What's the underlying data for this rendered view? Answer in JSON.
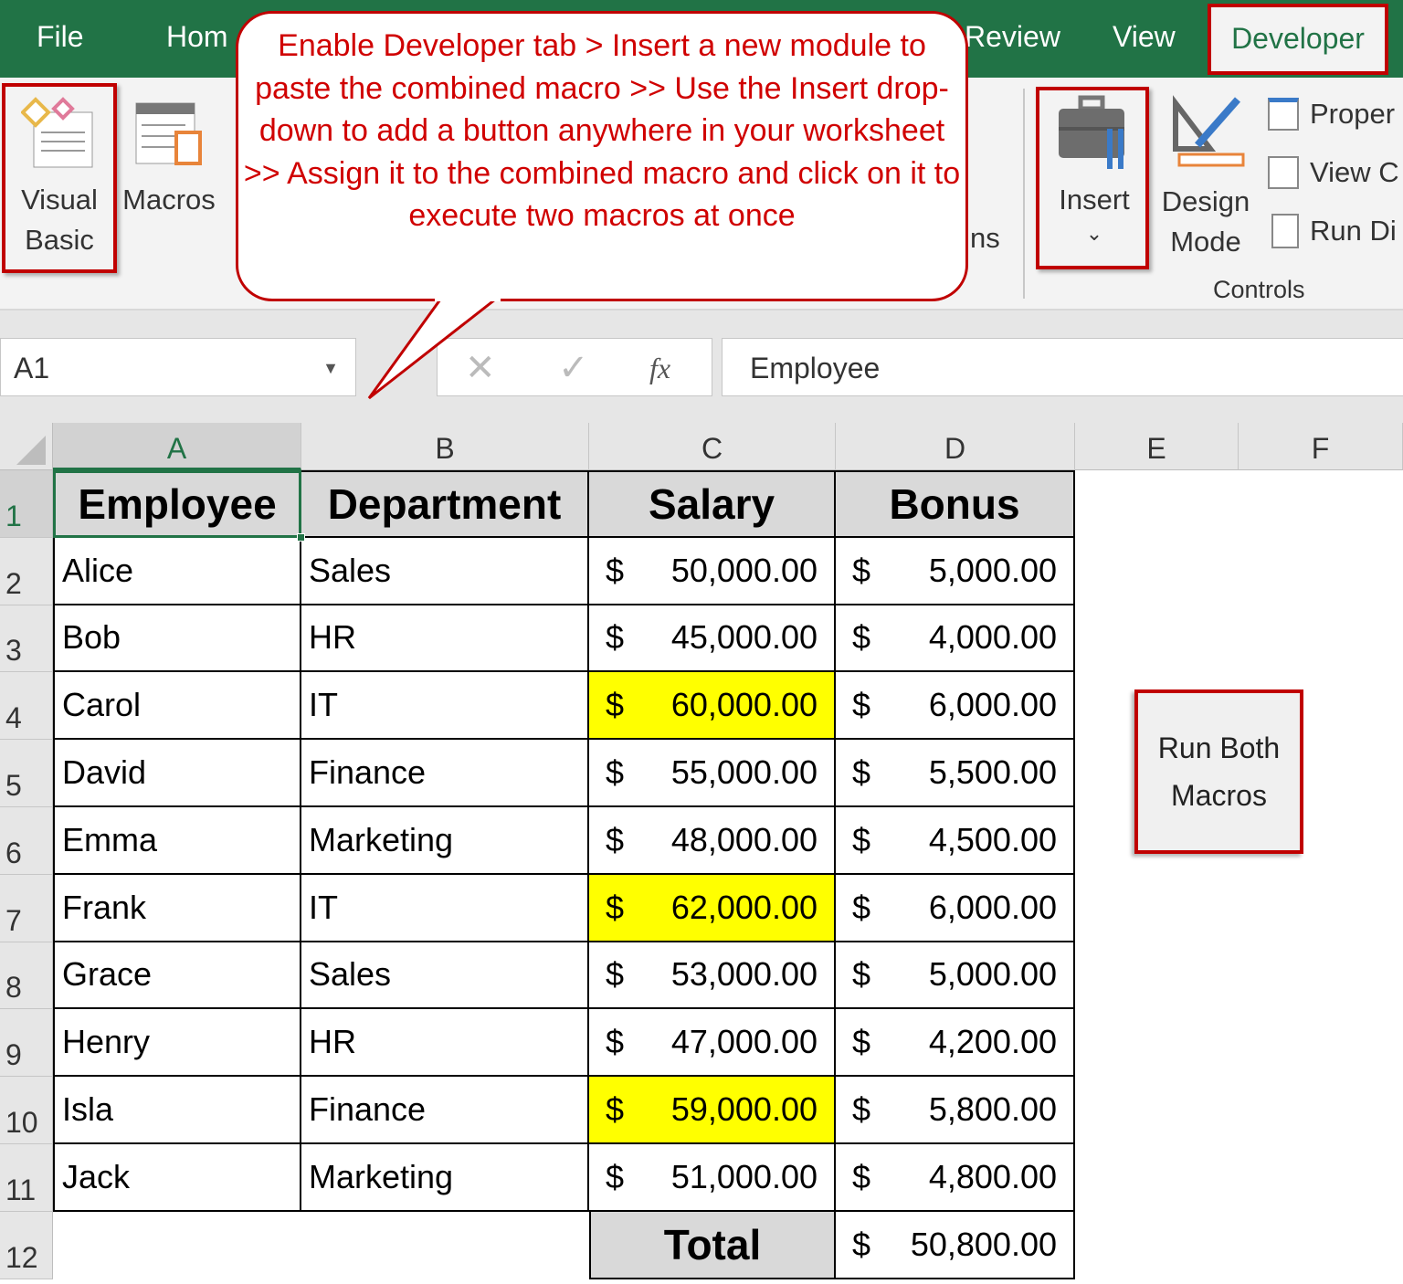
{
  "ribbon_tabs": [
    "File",
    "Hom",
    "Review",
    "View"
  ],
  "developer_tab": "Developer",
  "ribbon": {
    "visual_basic": [
      "Visual",
      "Basic"
    ],
    "macros": "Macros",
    "addins_partial": "ns",
    "insert": "Insert",
    "design_mode": [
      "Design",
      "Mode"
    ],
    "properties": "Proper",
    "view_code": "View C",
    "run_dialog": "Run Di",
    "group_controls": "Controls"
  },
  "callout": {
    "text": "Enable Developer tab > Insert a new module to paste the combined macro >> Use the Insert drop-down to add a button anywhere in your worksheet >> Assign it to the combined macro and click on it to execute two macros at once"
  },
  "formula_bar": {
    "name_box": "A1",
    "fx": "fx",
    "value": "Employee",
    "cancel": "✕",
    "enter": "✓"
  },
  "columns": [
    "A",
    "B",
    "C",
    "D",
    "E",
    "F"
  ],
  "rows": [
    "1",
    "2",
    "3",
    "4",
    "5",
    "6",
    "7",
    "8",
    "9",
    "10",
    "11",
    "12"
  ],
  "table": {
    "headers": [
      "Employee",
      "Department",
      "Salary",
      "Bonus"
    ],
    "data": [
      [
        "Alice",
        "Sales",
        "50,000.00",
        "5,000.00"
      ],
      [
        "Bob",
        "HR",
        "45,000.00",
        "4,000.00"
      ],
      [
        "Carol",
        "IT",
        "60,000.00",
        "6,000.00"
      ],
      [
        "David",
        "Finance",
        "55,000.00",
        "5,500.00"
      ],
      [
        "Emma",
        "Marketing",
        "48,000.00",
        "4,500.00"
      ],
      [
        "Frank",
        "IT",
        "62,000.00",
        "6,000.00"
      ],
      [
        "Grace",
        "Sales",
        "53,000.00",
        "5,000.00"
      ],
      [
        "Henry",
        "HR",
        "47,000.00",
        "4,200.00"
      ],
      [
        "Isla",
        "Finance",
        "59,000.00",
        "5,800.00"
      ],
      [
        "Jack",
        "Marketing",
        "51,000.00",
        "4,800.00"
      ]
    ],
    "highlighted_rows": [
      2,
      5,
      8
    ],
    "currency": "$",
    "total_label": "Total",
    "total_value": "50,800.00"
  },
  "button": {
    "label": [
      "Run Both",
      "Macros"
    ]
  },
  "colors": {
    "ribbon_green": "#217346",
    "highlight": "#ffff00",
    "annotation_red": "#c00000"
  }
}
